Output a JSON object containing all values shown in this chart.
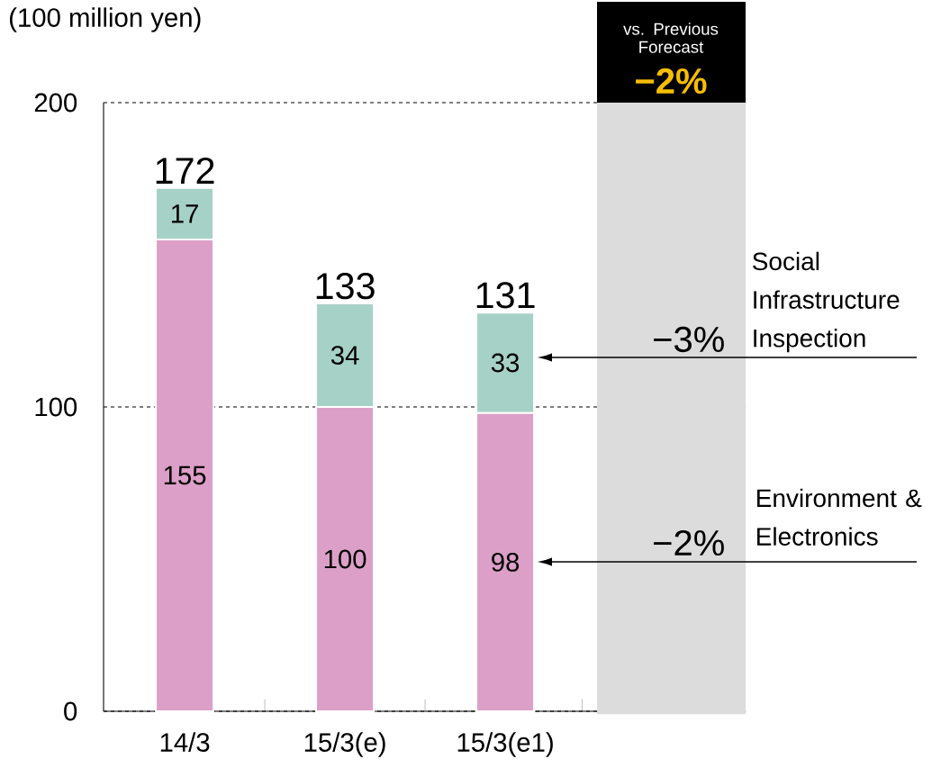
{
  "chart_data": {
    "type": "bar",
    "stacked": true,
    "ylabel": "(100 million yen)",
    "categories": [
      "14/3",
      "15/3(e)",
      "15/3(e1)"
    ],
    "series": [
      {
        "name": "Environment & Electronics",
        "color": "#dc9fc8",
        "values": [
          155,
          100,
          98
        ]
      },
      {
        "name": "Social Infrastructure Inspection",
        "color": "#a6d1c6",
        "values": [
          17,
          34,
          33
        ]
      }
    ],
    "totals": [
      "172",
      "133",
      "131"
    ],
    "data_labels": true,
    "ylim": [
      0,
      200
    ],
    "yticks": [
      0,
      100,
      200
    ],
    "grid": "y",
    "annotations": [
      "vs. Previous Forecast",
      "−2%",
      "−3%",
      "−2%"
    ]
  }
}
